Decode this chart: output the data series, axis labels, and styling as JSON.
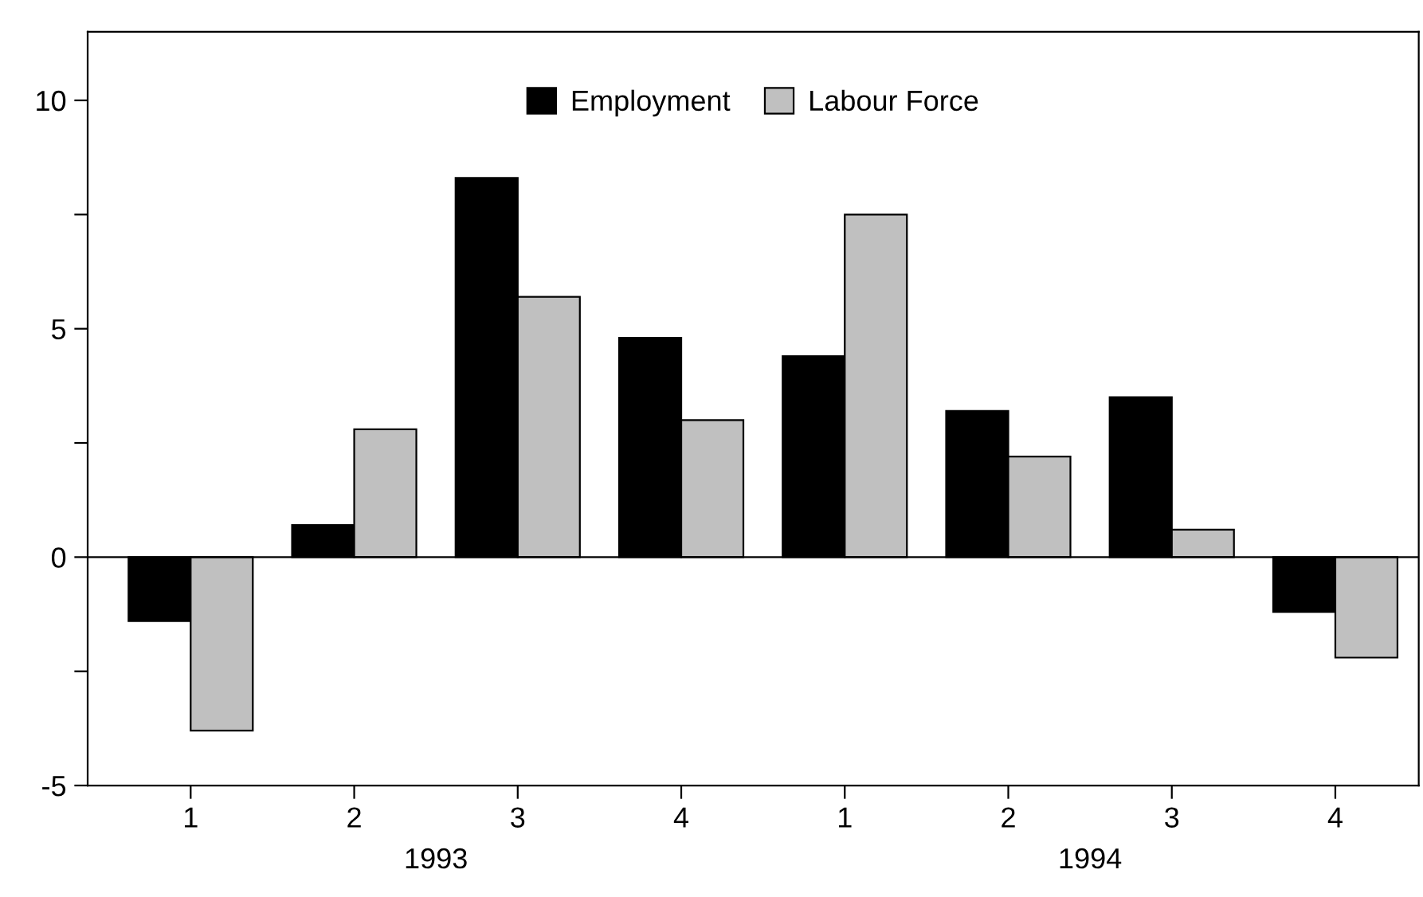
{
  "chart_data": {
    "type": "bar",
    "categories": [
      "1",
      "2",
      "3",
      "4",
      "1",
      "2",
      "3",
      "4"
    ],
    "series": [
      {
        "name": "Employment",
        "color": "#000000",
        "values": [
          -1.4,
          0.7,
          8.3,
          4.8,
          4.4,
          3.2,
          3.5,
          -1.2
        ]
      },
      {
        "name": "Labour Force",
        "color": "#c0c0c0",
        "values": [
          -3.8,
          2.8,
          5.7,
          3.0,
          7.5,
          2.2,
          0.6,
          -2.2
        ]
      }
    ],
    "ylim": [
      -5,
      11.5
    ],
    "yticks": [
      -5,
      {
        "value": -2.5,
        "label": null
      },
      0,
      {
        "value": 2.5,
        "label": null
      },
      5,
      {
        "value": 7.5,
        "label": null
      },
      10
    ],
    "annotations": [
      "1993",
      "1994"
    ],
    "ref_lines": [
      {
        "axis": "y",
        "value": 0,
        "color": "#000000"
      }
    ],
    "legend": "top"
  }
}
